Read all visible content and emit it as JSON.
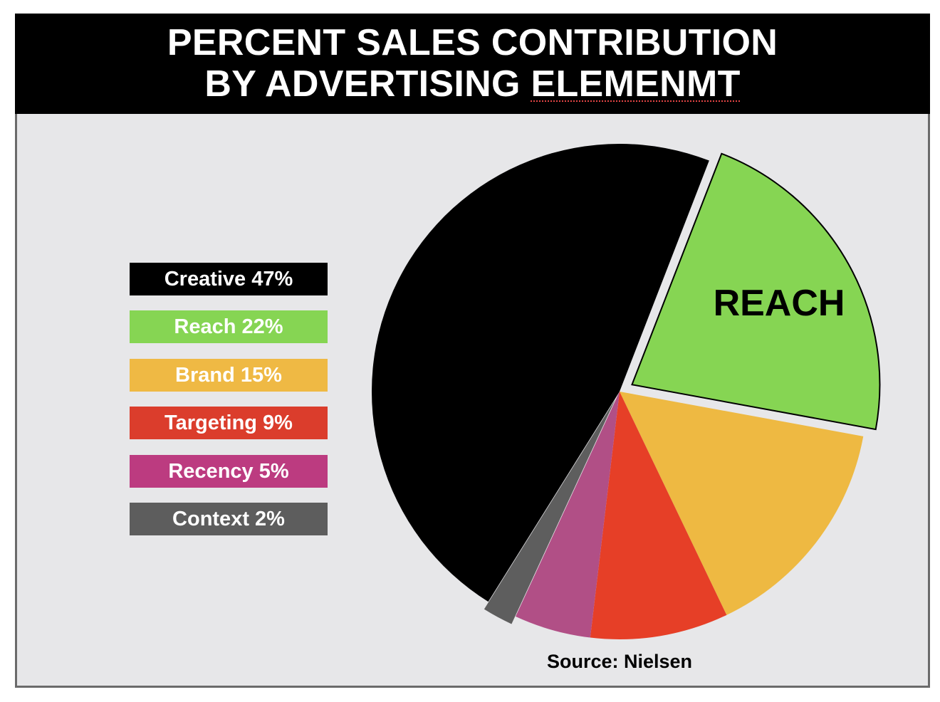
{
  "title": {
    "line1": "PERCENT SALES CONTRIBUTION",
    "line2_prefix": "BY ADVERTISING ",
    "line2_word": "ELEMENMT"
  },
  "source": "Source: Nielsen",
  "slice_label": "REACH",
  "colors": {
    "Creative": "#000000",
    "Reach": "#86d553",
    "Brand": "#eeb942",
    "Targeting": "#e63f27",
    "Recency": "#b14f86",
    "Context": "#5e5e5e",
    "legend_Reach": "#86d553",
    "legend_Brand": "#efb944",
    "legend_Targeting": "#db3d2c",
    "legend_Recency": "#bc3b80",
    "legend_Context": "#5d5d5d"
  },
  "legend": [
    {
      "text": "Creative 47%",
      "color": "#000000"
    },
    {
      "text": "Reach 22%",
      "color": "#86d553"
    },
    {
      "text": "Brand 15%",
      "color": "#efb944"
    },
    {
      "text": "Targeting 9%",
      "color": "#db3d2c"
    },
    {
      "text": "Recency 5%",
      "color": "#bc3b80"
    },
    {
      "text": "Context 2%",
      "color": "#5d5d5d"
    }
  ],
  "chart_data": {
    "type": "pie",
    "title": "PERCENT SALES CONTRIBUTION BY ADVERTISING ELEMENMT",
    "categories": [
      "Creative",
      "Reach",
      "Brand",
      "Targeting",
      "Recency",
      "Context"
    ],
    "values": [
      47,
      22,
      15,
      9,
      5,
      2
    ],
    "unit": "%",
    "exploded": [
      "Reach",
      "Context"
    ],
    "legend_position": "left"
  }
}
